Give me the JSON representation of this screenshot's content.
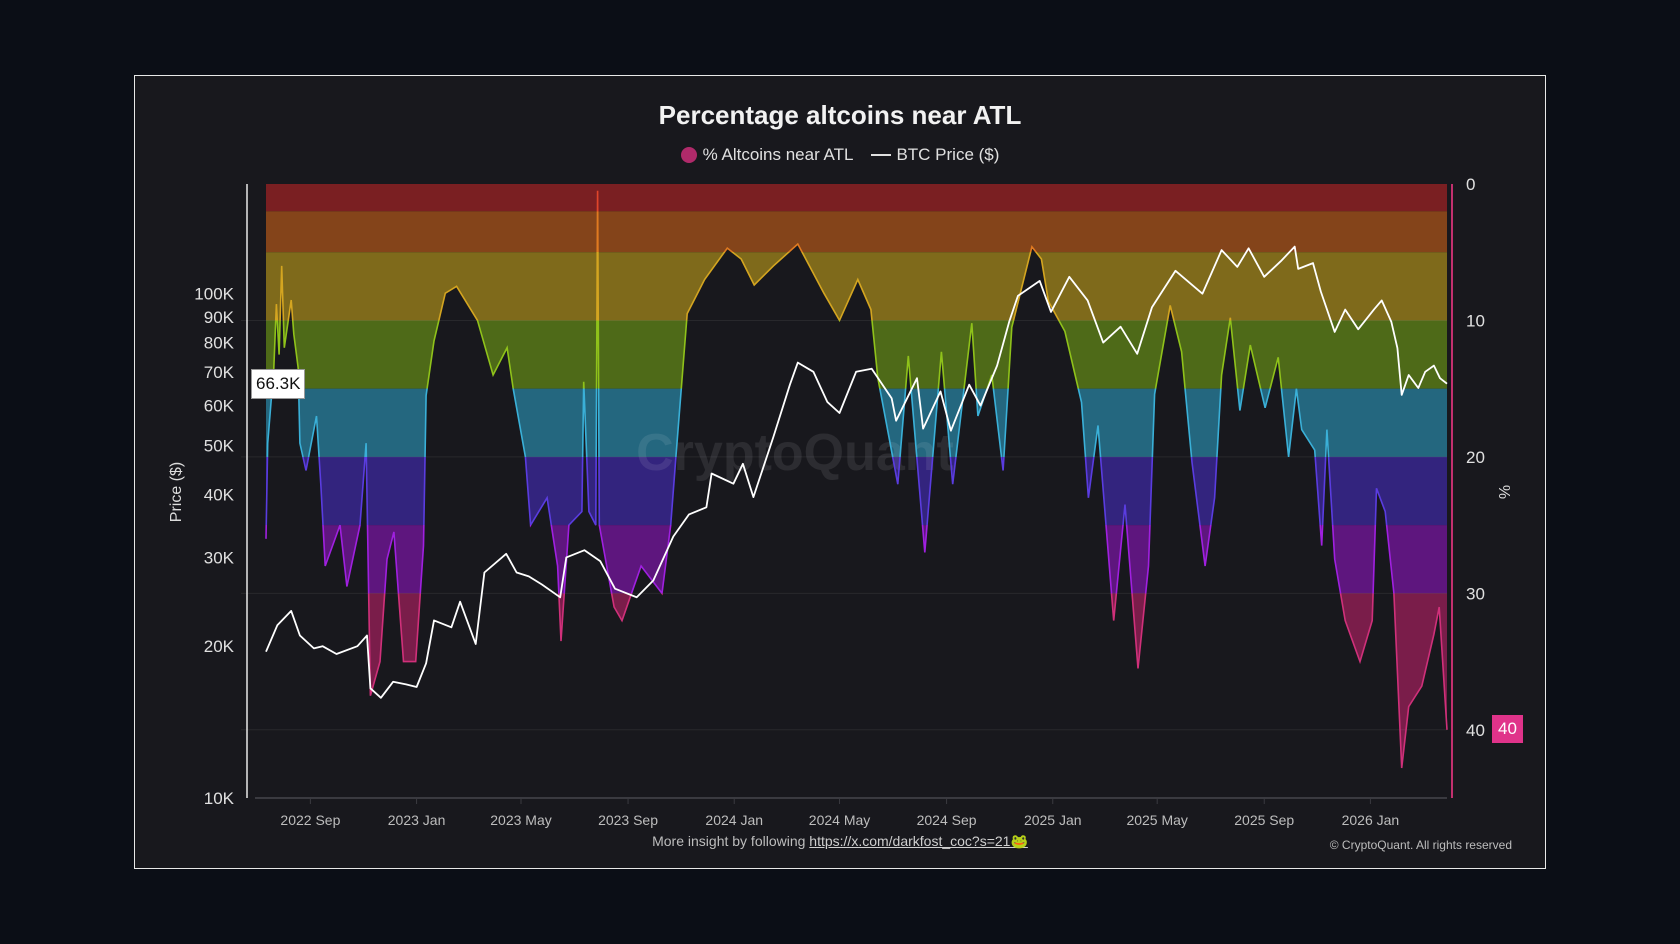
{
  "chart_data": {
    "type": "area+line",
    "title": "Percentage altcoins near ATL",
    "legend": [
      {
        "label": "% Altcoins near ATL",
        "marker": "dot",
        "color": "#b02a6a"
      },
      {
        "label": "BTC Price ($)",
        "marker": "line",
        "color": "#ffffff"
      }
    ],
    "legend_position": "top-center",
    "x_range": [
      "2022-07-12",
      "2026-03-30"
    ],
    "x_ticks": [
      {
        "date": "2022-09-01",
        "label": "2022 Sep"
      },
      {
        "date": "2023-01-01",
        "label": "2023 Jan"
      },
      {
        "date": "2023-05-01",
        "label": "2023 May"
      },
      {
        "date": "2023-09-01",
        "label": "2023 Sep"
      },
      {
        "date": "2024-01-01",
        "label": "2024 Jan"
      },
      {
        "date": "2024-05-01",
        "label": "2024 May"
      },
      {
        "date": "2024-09-01",
        "label": "2024 Sep"
      },
      {
        "date": "2025-01-01",
        "label": "2025 Jan"
      },
      {
        "date": "2025-05-01",
        "label": "2025 May"
      },
      {
        "date": "2025-09-01",
        "label": "2025 Sep"
      },
      {
        "date": "2026-01-01",
        "label": "2026 Jan"
      }
    ],
    "y_left": {
      "label": "Price ($)",
      "scale": "log",
      "range": [
        10000,
        165000
      ],
      "ticks": [
        {
          "value": 10000,
          "label": "10K"
        },
        {
          "value": 20000,
          "label": "20K"
        },
        {
          "value": 30000,
          "label": "30K"
        },
        {
          "value": 40000,
          "label": "40K"
        },
        {
          "value": 50000,
          "label": "50K"
        },
        {
          "value": 60000,
          "label": "60K"
        },
        {
          "value": 70000,
          "label": "70K"
        },
        {
          "value": 80000,
          "label": "80K"
        },
        {
          "value": 90000,
          "label": "90K"
        },
        {
          "value": 100000,
          "label": "100K"
        }
      ],
      "current_label": "66.3K"
    },
    "y_right": {
      "label": "%",
      "inverted": true,
      "range": [
        0,
        45
      ],
      "ticks": [
        {
          "value": 0,
          "label": "0"
        },
        {
          "value": 10,
          "label": "10"
        },
        {
          "value": 20,
          "label": "20"
        },
        {
          "value": 30,
          "label": "30"
        },
        {
          "value": 40,
          "label": "40"
        }
      ],
      "current_label": "40",
      "color": "#c2306e"
    },
    "bands": [
      {
        "from": 0,
        "to": 2,
        "color": "#7a1f22",
        "line": "#e0452a"
      },
      {
        "from": 2,
        "to": 5,
        "color": "#84441a",
        "line": "#e07a20"
      },
      {
        "from": 5,
        "to": 10,
        "color": "#7f6a1b",
        "line": "#d4a520"
      },
      {
        "from": 10,
        "to": 15,
        "color": "#4e6a18",
        "line": "#8fc21a"
      },
      {
        "from": 15,
        "to": 20,
        "color": "#24677f",
        "line": "#3ab0d8"
      },
      {
        "from": 20,
        "to": 25,
        "color": "#33247e",
        "line": "#5a3ce0"
      },
      {
        "from": 25,
        "to": 30,
        "color": "#5e167e",
        "line": "#a020e0"
      },
      {
        "from": 30,
        "to": 45,
        "color": "#7a1d4a",
        "line": "#d0307a"
      }
    ],
    "grid": true,
    "series": [
      {
        "name": "% Altcoins near ATL",
        "axis": "right",
        "points": [
          [
            "2022-07-12",
            26
          ],
          [
            "2022-07-14",
            19
          ],
          [
            "2022-07-21",
            13.5
          ],
          [
            "2022-07-24",
            8.8
          ],
          [
            "2022-07-27",
            12.5
          ],
          [
            "2022-07-30",
            6
          ],
          [
            "2022-08-02",
            12
          ],
          [
            "2022-08-10",
            8.5
          ],
          [
            "2022-08-13",
            11
          ],
          [
            "2022-08-18",
            13.5
          ],
          [
            "2022-08-20",
            19
          ],
          [
            "2022-08-27",
            21
          ],
          [
            "2022-09-08",
            17
          ],
          [
            "2022-09-13",
            22
          ],
          [
            "2022-09-18",
            28
          ],
          [
            "2022-10-05",
            25
          ],
          [
            "2022-10-13",
            29.5
          ],
          [
            "2022-10-28",
            25
          ],
          [
            "2022-11-04",
            19
          ],
          [
            "2022-11-09",
            37.5
          ],
          [
            "2022-11-20",
            35
          ],
          [
            "2022-11-28",
            27.5
          ],
          [
            "2022-12-06",
            25.5
          ],
          [
            "2022-12-17",
            35
          ],
          [
            "2022-12-31",
            35
          ],
          [
            "2023-01-09",
            26.5
          ],
          [
            "2023-01-12",
            15.5
          ],
          [
            "2023-01-21",
            11.5
          ],
          [
            "2023-02-03",
            8
          ],
          [
            "2023-02-16",
            7.5
          ],
          [
            "2023-03-12",
            10
          ],
          [
            "2023-03-30",
            14
          ],
          [
            "2023-04-15",
            12
          ],
          [
            "2023-04-22",
            15
          ],
          [
            "2023-05-06",
            20
          ],
          [
            "2023-05-12",
            25
          ],
          [
            "2023-05-31",
            23
          ],
          [
            "2023-06-12",
            28
          ],
          [
            "2023-06-16",
            33.5
          ],
          [
            "2023-06-25",
            25
          ],
          [
            "2023-07-10",
            24
          ],
          [
            "2023-07-12",
            14.5
          ],
          [
            "2023-07-18",
            24
          ],
          [
            "2023-07-26",
            25
          ],
          [
            "2023-07-28",
            0.5
          ],
          [
            "2023-07-30",
            25
          ],
          [
            "2023-08-16",
            31
          ],
          [
            "2023-08-25",
            32
          ],
          [
            "2023-09-16",
            28
          ],
          [
            "2023-10-10",
            30
          ],
          [
            "2023-10-20",
            25
          ],
          [
            "2023-10-26",
            20
          ],
          [
            "2023-11-08",
            9.5
          ],
          [
            "2023-11-28",
            7
          ],
          [
            "2023-12-24",
            4.7
          ],
          [
            "2024-01-09",
            5.5
          ],
          [
            "2024-01-24",
            7.4
          ],
          [
            "2024-02-15",
            6
          ],
          [
            "2024-03-14",
            4.4
          ],
          [
            "2024-04-13",
            8
          ],
          [
            "2024-05-01",
            10
          ],
          [
            "2024-05-22",
            7
          ],
          [
            "2024-06-06",
            9.2
          ],
          [
            "2024-06-14",
            14.2
          ],
          [
            "2024-07-07",
            22
          ],
          [
            "2024-07-19",
            12.6
          ],
          [
            "2024-08-07",
            27
          ],
          [
            "2024-08-26",
            12.3
          ],
          [
            "2024-09-08",
            22
          ],
          [
            "2024-09-30",
            10.2
          ],
          [
            "2024-10-07",
            17
          ],
          [
            "2024-10-23",
            14
          ],
          [
            "2024-11-05",
            21
          ],
          [
            "2024-11-15",
            10.5
          ],
          [
            "2024-12-08",
            4.6
          ],
          [
            "2024-12-19",
            5.5
          ],
          [
            "2024-12-27",
            8.6
          ],
          [
            "2025-01-15",
            10.8
          ],
          [
            "2025-02-03",
            16
          ],
          [
            "2025-02-11",
            23
          ],
          [
            "2025-02-22",
            17.7
          ],
          [
            "2025-03-12",
            32
          ],
          [
            "2025-03-25",
            23.5
          ],
          [
            "2025-04-09",
            35.5
          ],
          [
            "2025-04-21",
            28
          ],
          [
            "2025-04-28",
            15.4
          ],
          [
            "2025-05-16",
            8.9
          ],
          [
            "2025-05-29",
            12.3
          ],
          [
            "2025-06-10",
            20.4
          ],
          [
            "2025-06-25",
            28
          ],
          [
            "2025-07-06",
            23
          ],
          [
            "2025-07-14",
            14
          ],
          [
            "2025-07-24",
            9.8
          ],
          [
            "2025-08-04",
            16.6
          ],
          [
            "2025-08-16",
            11.8
          ],
          [
            "2025-09-02",
            16.4
          ],
          [
            "2025-09-17",
            12.7
          ],
          [
            "2025-09-29",
            20
          ],
          [
            "2025-10-08",
            15
          ],
          [
            "2025-10-14",
            18
          ],
          [
            "2025-10-29",
            19.5
          ],
          [
            "2025-11-06",
            26.5
          ],
          [
            "2025-11-12",
            18
          ],
          [
            "2025-11-21",
            27.5
          ],
          [
            "2025-12-03",
            32
          ],
          [
            "2025-12-20",
            35
          ],
          [
            "2026-01-03",
            32
          ],
          [
            "2026-01-08",
            22.3
          ],
          [
            "2026-01-18",
            24
          ],
          [
            "2026-01-28",
            30
          ],
          [
            "2026-02-06",
            42.8
          ],
          [
            "2026-02-14",
            38.3
          ],
          [
            "2026-03-01",
            36.8
          ],
          [
            "2026-03-15",
            33
          ],
          [
            "2026-03-21",
            31
          ],
          [
            "2026-03-30",
            40
          ]
        ]
      },
      {
        "name": "BTC Price ($)",
        "axis": "left",
        "color": "#ffffff",
        "points": [
          [
            "2022-07-12",
            19500
          ],
          [
            "2022-07-25",
            22000
          ],
          [
            "2022-08-10",
            23500
          ],
          [
            "2022-08-20",
            21000
          ],
          [
            "2022-09-05",
            19800
          ],
          [
            "2022-09-15",
            20000
          ],
          [
            "2022-10-01",
            19300
          ],
          [
            "2022-10-25",
            20000
          ],
          [
            "2022-11-05",
            21000
          ],
          [
            "2022-11-09",
            16500
          ],
          [
            "2022-11-21",
            15800
          ],
          [
            "2022-12-05",
            17000
          ],
          [
            "2022-12-20",
            16800
          ],
          [
            "2023-01-01",
            16600
          ],
          [
            "2023-01-12",
            18500
          ],
          [
            "2023-01-21",
            22500
          ],
          [
            "2023-02-10",
            21800
          ],
          [
            "2023-02-20",
            24500
          ],
          [
            "2023-03-10",
            20200
          ],
          [
            "2023-03-20",
            28000
          ],
          [
            "2023-04-14",
            30500
          ],
          [
            "2023-04-26",
            28000
          ],
          [
            "2023-05-10",
            27500
          ],
          [
            "2023-05-25",
            26500
          ],
          [
            "2023-06-15",
            25000
          ],
          [
            "2023-06-22",
            30000
          ],
          [
            "2023-07-13",
            31000
          ],
          [
            "2023-07-31",
            29500
          ],
          [
            "2023-08-17",
            26000
          ],
          [
            "2023-09-11",
            25000
          ],
          [
            "2023-09-30",
            27000
          ],
          [
            "2023-10-23",
            33000
          ],
          [
            "2023-11-10",
            36500
          ],
          [
            "2023-11-30",
            37700
          ],
          [
            "2023-12-06",
            44000
          ],
          [
            "2023-12-31",
            42000
          ],
          [
            "2024-01-11",
            46000
          ],
          [
            "2024-01-23",
            39500
          ],
          [
            "2024-02-15",
            52000
          ],
          [
            "2024-03-05",
            66000
          ],
          [
            "2024-03-14",
            73000
          ],
          [
            "2024-04-01",
            70000
          ],
          [
            "2024-04-17",
            61000
          ],
          [
            "2024-05-01",
            58000
          ],
          [
            "2024-05-20",
            70000
          ],
          [
            "2024-06-07",
            71000
          ],
          [
            "2024-06-30",
            62000
          ],
          [
            "2024-07-05",
            56000
          ],
          [
            "2024-07-29",
            68000
          ],
          [
            "2024-08-05",
            54000
          ],
          [
            "2024-08-25",
            64000
          ],
          [
            "2024-09-06",
            53500
          ],
          [
            "2024-09-27",
            66000
          ],
          [
            "2024-10-10",
            60000
          ],
          [
            "2024-10-29",
            72000
          ],
          [
            "2024-11-12",
            88000
          ],
          [
            "2024-11-22",
            99000
          ],
          [
            "2024-12-17",
            106000
          ],
          [
            "2024-12-30",
            92000
          ],
          [
            "2025-01-20",
            108000
          ],
          [
            "2025-02-10",
            97000
          ],
          [
            "2025-02-28",
            80000
          ],
          [
            "2025-03-20",
            86000
          ],
          [
            "2025-04-08",
            76000
          ],
          [
            "2025-04-25",
            94000
          ],
          [
            "2025-05-22",
            111000
          ],
          [
            "2025-06-22",
            100000
          ],
          [
            "2025-07-14",
            122000
          ],
          [
            "2025-08-01",
            113000
          ],
          [
            "2025-08-14",
            123000
          ],
          [
            "2025-09-01",
            108000
          ],
          [
            "2025-09-20",
            116000
          ],
          [
            "2025-10-06",
            124000
          ],
          [
            "2025-10-10",
            112000
          ],
          [
            "2025-10-27",
            115000
          ],
          [
            "2025-11-05",
            101000
          ],
          [
            "2025-11-21",
            84000
          ],
          [
            "2025-12-03",
            93000
          ],
          [
            "2025-12-18",
            85000
          ],
          [
            "2026-01-05",
            93000
          ],
          [
            "2026-01-14",
            97000
          ],
          [
            "2026-01-25",
            88000
          ],
          [
            "2026-02-01",
            78000
          ],
          [
            "2026-02-06",
            63000
          ],
          [
            "2026-02-14",
            69000
          ],
          [
            "2026-02-25",
            65000
          ],
          [
            "2026-03-05",
            70000
          ],
          [
            "2026-03-15",
            72000
          ],
          [
            "2026-03-22",
            68000
          ],
          [
            "2026-03-30",
            66300
          ]
        ]
      }
    ],
    "watermark": "CryptoQuant"
  },
  "footer": {
    "prefix": "More insight by following ",
    "link": "https://x.com/darkfost_coc?s=21🐸",
    "copyright": "© CryptoQuant. All rights reserved"
  }
}
